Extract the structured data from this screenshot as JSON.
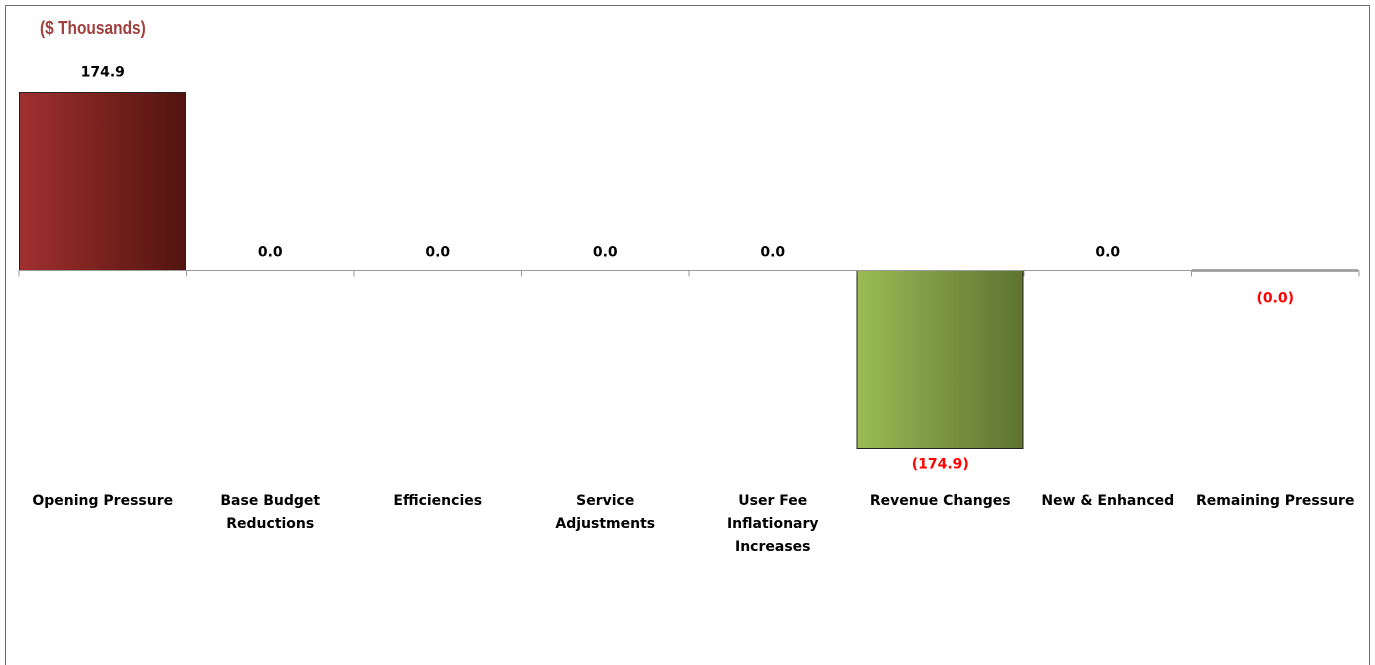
{
  "chart_data": {
    "type": "bar",
    "subtitle": "($ Thousands)",
    "categories": [
      "Opening Pressure",
      "Base Budget Reductions",
      "Efficiencies",
      "Service Adjustments",
      "User Fee Inflationary Increases",
      "Revenue Changes",
      "New & Enhanced",
      "Remaining Pressure"
    ],
    "category_lines": [
      [
        "Opening Pressure"
      ],
      [
        "Base Budget",
        "Reductions"
      ],
      [
        "Efficiencies"
      ],
      [
        "Service",
        "Adjustments"
      ],
      [
        "User Fee",
        "Inflationary",
        "Increases"
      ],
      [
        "Revenue Changes"
      ],
      [
        "New & Enhanced"
      ],
      [
        "Remaining Pressure"
      ]
    ],
    "values": [
      174.9,
      0.0,
      0.0,
      0.0,
      0.0,
      -174.9,
      0.0,
      -0.0
    ],
    "data_labels": [
      "174.9",
      "0.0",
      "0.0",
      "0.0",
      "0.0",
      "(174.9)",
      "0.0",
      "(0.0)"
    ],
    "ylim": [
      -174.9,
      174.9
    ],
    "grid": false,
    "legend": "none",
    "colors": {
      "positive_start": "#a0302f",
      "positive_end": "#52140f",
      "negative_start": "#9bbb55",
      "negative_end": "#5d7330",
      "positive_label": "#000000",
      "negative_label": "#ff0000",
      "subtitle": "#a0403c"
    }
  }
}
